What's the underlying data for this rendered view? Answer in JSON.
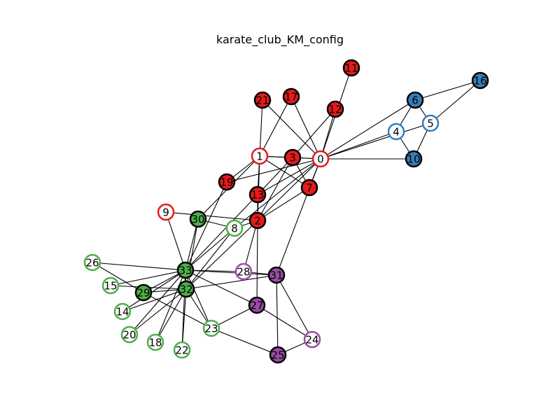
{
  "title": "karate_club_KM_config",
  "colors": {
    "red": "#e41a1c",
    "blue": "#377eb8",
    "green": "#4daf4a",
    "purple": "#984ea3",
    "stroke_dark": "#000000",
    "edge": "#000000",
    "hollow_fill": "#ffffff"
  },
  "graph": {
    "nodes": [
      {
        "id": 0,
        "label": "0",
        "group": "red",
        "style": "hollow"
      },
      {
        "id": 1,
        "label": "1",
        "group": "red",
        "style": "hollow"
      },
      {
        "id": 2,
        "label": "2",
        "group": "red",
        "style": "filled"
      },
      {
        "id": 3,
        "label": "3",
        "group": "red",
        "style": "filled"
      },
      {
        "id": 4,
        "label": "4",
        "group": "blue",
        "style": "hollow"
      },
      {
        "id": 5,
        "label": "5",
        "group": "blue",
        "style": "hollow"
      },
      {
        "id": 6,
        "label": "6",
        "group": "blue",
        "style": "filled"
      },
      {
        "id": 7,
        "label": "7",
        "group": "red",
        "style": "filled"
      },
      {
        "id": 8,
        "label": "8",
        "group": "green",
        "style": "hollow"
      },
      {
        "id": 9,
        "label": "9",
        "group": "red",
        "style": "hollow"
      },
      {
        "id": 10,
        "label": "10",
        "group": "blue",
        "style": "filled"
      },
      {
        "id": 11,
        "label": "11",
        "group": "red",
        "style": "filled"
      },
      {
        "id": 12,
        "label": "12",
        "group": "red",
        "style": "filled"
      },
      {
        "id": 13,
        "label": "13",
        "group": "red",
        "style": "filled"
      },
      {
        "id": 14,
        "label": "14",
        "group": "green",
        "style": "hollow"
      },
      {
        "id": 15,
        "label": "15",
        "group": "green",
        "style": "hollow"
      },
      {
        "id": 16,
        "label": "16",
        "group": "blue",
        "style": "filled"
      },
      {
        "id": 17,
        "label": "17",
        "group": "red",
        "style": "filled"
      },
      {
        "id": 18,
        "label": "18",
        "group": "green",
        "style": "hollow"
      },
      {
        "id": 19,
        "label": "19",
        "group": "red",
        "style": "filled"
      },
      {
        "id": 20,
        "label": "20",
        "group": "green",
        "style": "hollow"
      },
      {
        "id": 21,
        "label": "21",
        "group": "red",
        "style": "filled"
      },
      {
        "id": 22,
        "label": "22",
        "group": "green",
        "style": "hollow"
      },
      {
        "id": 23,
        "label": "23",
        "group": "green",
        "style": "hollow"
      },
      {
        "id": 24,
        "label": "24",
        "group": "purple",
        "style": "hollow"
      },
      {
        "id": 25,
        "label": "25",
        "group": "purple",
        "style": "filled"
      },
      {
        "id": 26,
        "label": "26",
        "group": "green",
        "style": "hollow"
      },
      {
        "id": 27,
        "label": "27",
        "group": "purple",
        "style": "filled"
      },
      {
        "id": 28,
        "label": "28",
        "group": "purple",
        "style": "hollow"
      },
      {
        "id": 29,
        "label": "29",
        "group": "green",
        "style": "filled"
      },
      {
        "id": 30,
        "label": "30",
        "group": "green",
        "style": "filled"
      },
      {
        "id": 31,
        "label": "31",
        "group": "purple",
        "style": "filled"
      },
      {
        "id": 32,
        "label": "32",
        "group": "green",
        "style": "filled"
      },
      {
        "id": 33,
        "label": "33",
        "group": "green",
        "style": "filled"
      }
    ],
    "edges": [
      [
        0,
        1
      ],
      [
        0,
        2
      ],
      [
        0,
        3
      ],
      [
        0,
        4
      ],
      [
        0,
        5
      ],
      [
        0,
        6
      ],
      [
        0,
        7
      ],
      [
        0,
        8
      ],
      [
        0,
        10
      ],
      [
        0,
        11
      ],
      [
        0,
        12
      ],
      [
        0,
        13
      ],
      [
        0,
        17
      ],
      [
        0,
        19
      ],
      [
        0,
        21
      ],
      [
        0,
        31
      ],
      [
        1,
        2
      ],
      [
        1,
        3
      ],
      [
        1,
        7
      ],
      [
        1,
        13
      ],
      [
        1,
        17
      ],
      [
        1,
        19
      ],
      [
        1,
        21
      ],
      [
        1,
        30
      ],
      [
        2,
        3
      ],
      [
        2,
        7
      ],
      [
        2,
        8
      ],
      [
        2,
        9
      ],
      [
        2,
        13
      ],
      [
        2,
        27
      ],
      [
        2,
        28
      ],
      [
        2,
        32
      ],
      [
        3,
        7
      ],
      [
        3,
        12
      ],
      [
        3,
        13
      ],
      [
        4,
        6
      ],
      [
        4,
        10
      ],
      [
        5,
        6
      ],
      [
        5,
        10
      ],
      [
        5,
        16
      ],
      [
        6,
        16
      ],
      [
        8,
        30
      ],
      [
        8,
        32
      ],
      [
        8,
        33
      ],
      [
        9,
        33
      ],
      [
        13,
        33
      ],
      [
        14,
        32
      ],
      [
        14,
        33
      ],
      [
        15,
        32
      ],
      [
        15,
        33
      ],
      [
        18,
        32
      ],
      [
        18,
        33
      ],
      [
        19,
        33
      ],
      [
        20,
        32
      ],
      [
        20,
        33
      ],
      [
        22,
        32
      ],
      [
        22,
        33
      ],
      [
        23,
        25
      ],
      [
        23,
        27
      ],
      [
        23,
        29
      ],
      [
        23,
        32
      ],
      [
        23,
        33
      ],
      [
        24,
        25
      ],
      [
        24,
        27
      ],
      [
        24,
        31
      ],
      [
        25,
        31
      ],
      [
        26,
        29
      ],
      [
        26,
        33
      ],
      [
        27,
        33
      ],
      [
        28,
        31
      ],
      [
        28,
        33
      ],
      [
        29,
        32
      ],
      [
        29,
        33
      ],
      [
        30,
        32
      ],
      [
        30,
        33
      ],
      [
        31,
        32
      ],
      [
        31,
        33
      ],
      [
        32,
        33
      ]
    ]
  }
}
